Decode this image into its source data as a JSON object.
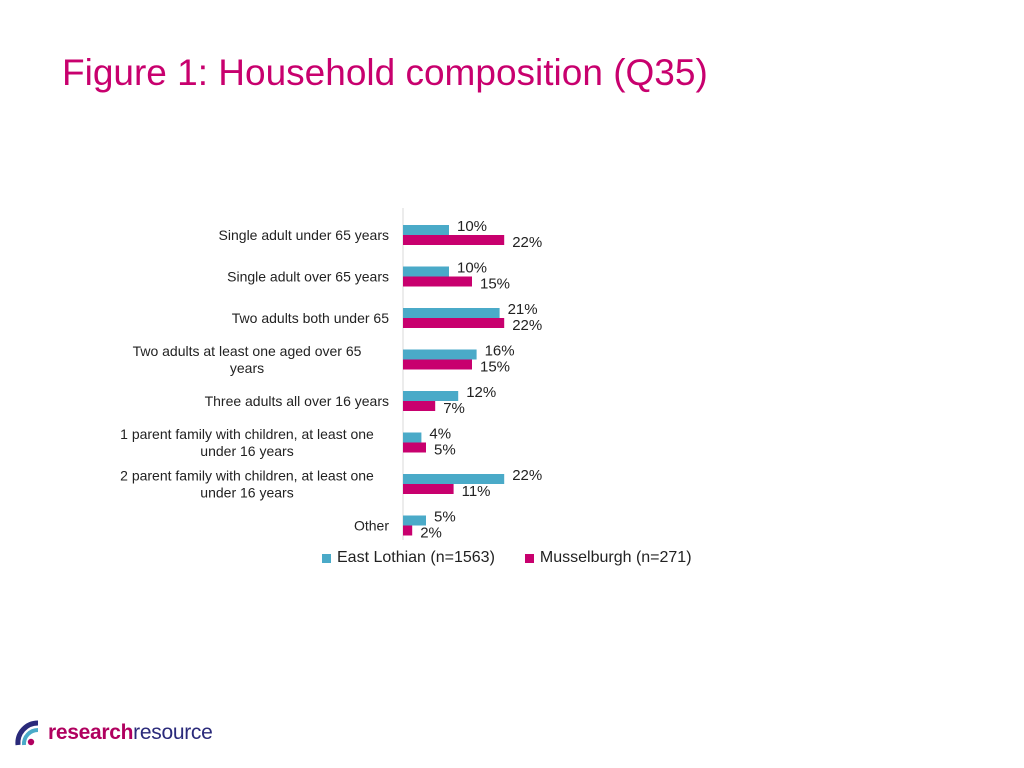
{
  "title": "Figure 1: Household composition (Q35)",
  "colors": {
    "title": "#c8006e",
    "east_lothian": "#4aaac8",
    "musselburgh": "#c8006e"
  },
  "logo": {
    "part_a": "research",
    "part_b": "resource",
    "icon": "logo-arc-icon"
  },
  "chart_data": {
    "type": "bar",
    "orientation": "horizontal",
    "categories": [
      "Single adult under 65 years",
      "Single adult over 65 years",
      "Two adults both under 65",
      "Two adults at least one aged over 65 years",
      "Three adults all over 16 years",
      "1 parent family with children, at least one under 16 years",
      "2 parent family with children, at least one under 16 years",
      "Other"
    ],
    "category_lines": [
      [
        "Single adult under 65 years"
      ],
      [
        "Single adult over 65 years"
      ],
      [
        "Two adults both under 65"
      ],
      [
        "Two adults at least one aged over 65",
        "years"
      ],
      [
        "Three adults all over 16 years"
      ],
      [
        "1 parent family with children, at least one",
        "under 16 years"
      ],
      [
        "2 parent family with children, at least one",
        "under 16 years"
      ],
      [
        "Other"
      ]
    ],
    "series": [
      {
        "name": "East Lothian (n=1563)",
        "color": "#4aaac8",
        "values": [
          10,
          10,
          21,
          16,
          12,
          4,
          22,
          5
        ]
      },
      {
        "name": "Musselburgh (n=271)",
        "color": "#c8006e",
        "values": [
          22,
          15,
          22,
          15,
          7,
          5,
          11,
          2
        ]
      }
    ],
    "value_suffix": "%",
    "xlim": [
      0,
      100
    ],
    "grid": false,
    "legend_position": "bottom"
  }
}
